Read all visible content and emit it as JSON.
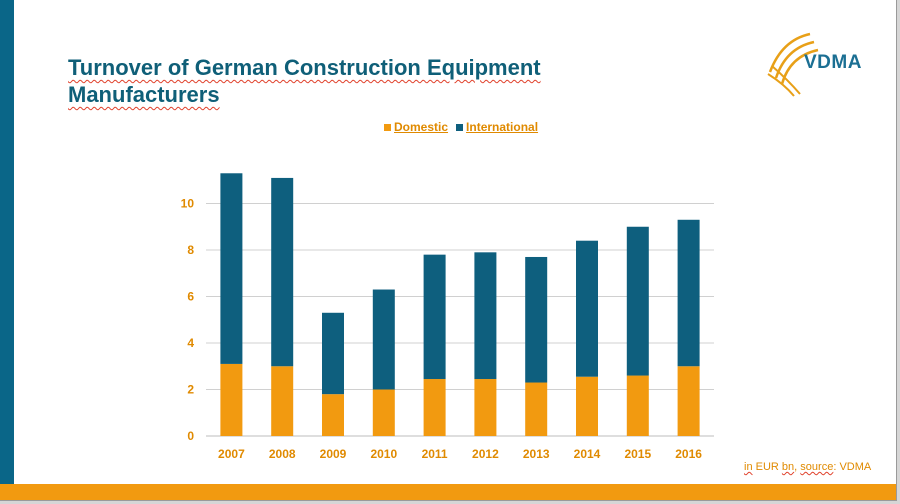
{
  "slide": {
    "title_line1": "Turnover of German Construction Equipment",
    "title_line2": "Manufacturers",
    "logo_text": "VDMA",
    "footnote": {
      "part1": "in",
      "part2": "EUR",
      "part3": "bn",
      "part4": ", ",
      "part5": "source",
      "part6": ": VDMA"
    }
  },
  "colors": {
    "domestic": "#f29a10",
    "international": "#0e5f7e",
    "tick_label": "#e08a00",
    "grid": "#d0d0d0"
  },
  "chart_data": {
    "type": "bar",
    "stacked": true,
    "categories": [
      "2007",
      "2008",
      "2009",
      "2010",
      "2011",
      "2012",
      "2013",
      "2014",
      "2015",
      "2016"
    ],
    "series": [
      {
        "name": "Domestic",
        "values": [
          3.1,
          3.0,
          1.8,
          2.0,
          2.45,
          2.45,
          2.3,
          2.55,
          2.6,
          3.0
        ]
      },
      {
        "name": "International",
        "values": [
          8.2,
          8.1,
          3.5,
          4.3,
          5.35,
          5.45,
          5.4,
          5.85,
          6.4,
          6.3
        ]
      }
    ],
    "y_ticks": [
      "0",
      "2",
      "4",
      "6",
      "8",
      "10"
    ],
    "ylim": [
      0,
      12
    ],
    "grid": true,
    "legend_position": "top"
  }
}
